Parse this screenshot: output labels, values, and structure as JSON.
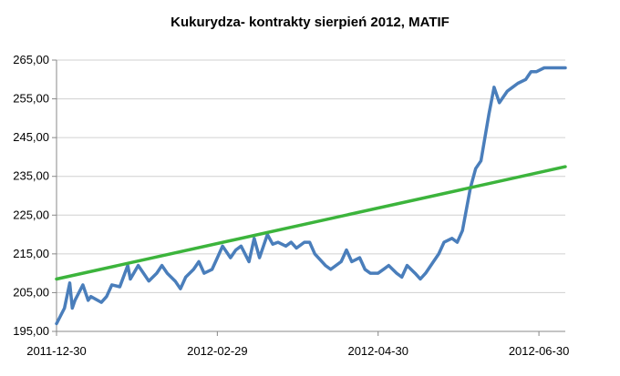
{
  "chart_data": {
    "type": "line",
    "title": "Kukurydza- kontrakty sierpień 2012, MATIF",
    "xlabel": "",
    "ylabel": "",
    "ylim": [
      195,
      265
    ],
    "yticks": [
      "195,00",
      "205,00",
      "215,00",
      "225,00",
      "235,00",
      "245,00",
      "255,00",
      "265,00"
    ],
    "ytick_values": [
      195,
      205,
      215,
      225,
      235,
      245,
      255,
      265
    ],
    "xticks": [
      "2011-12-30",
      "2012-02-29",
      "2012-04-30",
      "2012-06-30"
    ],
    "xlim": [
      "2011-12-30",
      "2012-07-10"
    ],
    "grid": "horizontal",
    "colors": {
      "price": "#4a7ebb",
      "trend": "#3cb43c",
      "grid": "#d0d0d0",
      "axis": "#888888"
    },
    "series": [
      {
        "kind": "price",
        "x": [
          "2011-12-30",
          "2012-01-02",
          "2012-01-04",
          "2012-01-05",
          "2012-01-06",
          "2012-01-09",
          "2012-01-11",
          "2012-01-12",
          "2012-01-16",
          "2012-01-18",
          "2012-01-20",
          "2012-01-23",
          "2012-01-26",
          "2012-01-27",
          "2012-01-30",
          "2012-02-01",
          "2012-02-03",
          "2012-02-06",
          "2012-02-08",
          "2012-02-10",
          "2012-02-13",
          "2012-02-15",
          "2012-02-17",
          "2012-02-20",
          "2012-02-22",
          "2012-02-24",
          "2012-02-27",
          "2012-02-29",
          "2012-03-02",
          "2012-03-05",
          "2012-03-07",
          "2012-03-09",
          "2012-03-12",
          "2012-03-14",
          "2012-03-16",
          "2012-03-19",
          "2012-03-21",
          "2012-03-23",
          "2012-03-26",
          "2012-03-28",
          "2012-03-30",
          "2012-04-02",
          "2012-04-04",
          "2012-04-06",
          "2012-04-10",
          "2012-04-12",
          "2012-04-16",
          "2012-04-18",
          "2012-04-20",
          "2012-04-23",
          "2012-04-25",
          "2012-04-27",
          "2012-04-30",
          "2012-05-02",
          "2012-05-04",
          "2012-05-07",
          "2012-05-09",
          "2012-05-11",
          "2012-05-14",
          "2012-05-16",
          "2012-05-18",
          "2012-05-21",
          "2012-05-23",
          "2012-05-25",
          "2012-05-28",
          "2012-05-30",
          "2012-06-01",
          "2012-06-04",
          "2012-06-06",
          "2012-06-08",
          "2012-06-11",
          "2012-06-13",
          "2012-06-15",
          "2012-06-18",
          "2012-06-20",
          "2012-06-22",
          "2012-06-25",
          "2012-06-26",
          "2012-06-27",
          "2012-06-29",
          "2012-07-02",
          "2012-07-04",
          "2012-07-06",
          "2012-07-09",
          "2012-07-10"
        ],
        "y": [
          197,
          201,
          207.5,
          201,
          203,
          207,
          203,
          204,
          202.5,
          204,
          207,
          206.5,
          212,
          208.5,
          212,
          210,
          208,
          210,
          212,
          210,
          208,
          206,
          209,
          211,
          213,
          210,
          211,
          214,
          217,
          214,
          216,
          217,
          213,
          219,
          214,
          220,
          217.5,
          218,
          217,
          218,
          216.5,
          218,
          218,
          215,
          212,
          211,
          213,
          216,
          213,
          214,
          211,
          210,
          210,
          211,
          212,
          210,
          209,
          212,
          210,
          208.5,
          210,
          213,
          215,
          218,
          219,
          218,
          221,
          232,
          237,
          239,
          251,
          258,
          254,
          257,
          258,
          259,
          260,
          261,
          262,
          262,
          263,
          263,
          263,
          263,
          263
        ]
      },
      {
        "kind": "trend",
        "x": [
          "2011-12-30",
          "2012-07-10"
        ],
        "y": [
          208.5,
          237.5
        ]
      }
    ]
  }
}
